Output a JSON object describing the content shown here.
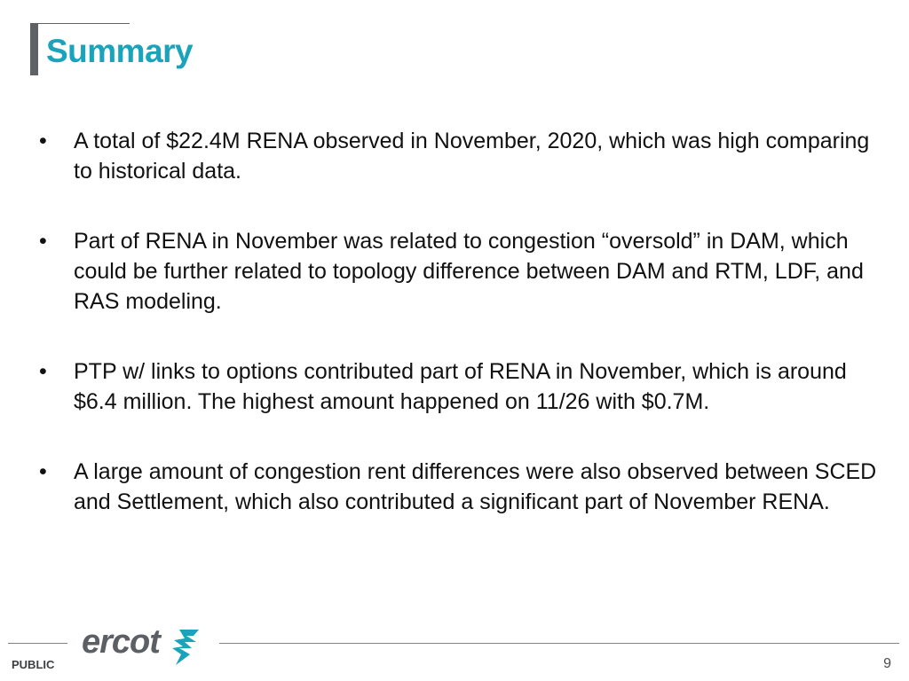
{
  "slide": {
    "title": "Summary",
    "bullets": [
      "A total of $22.4M RENA observed in November, 2020, which was high comparing to historical data.",
      "Part of RENA in November was related to congestion “oversold” in DAM, which could be further related to topology difference between DAM and RTM, LDF, and RAS modeling.",
      "PTP w/ links to options contributed part of RENA in November, which is around $6.4 million. The highest amount happened on 11/26 with $0.7M.",
      "A large amount of congestion rent differences were also observed between SCED and Settlement, which also contributed a significant part of November RENA."
    ],
    "bullet_symbol": "•"
  },
  "footer": {
    "classification": "PUBLIC",
    "page_number": "9",
    "logo_text": "ercot",
    "logo_icon": "ercot-lightning-mark"
  },
  "colors": {
    "title": "#1aa3bb",
    "accent_bar": "#5f6265",
    "logo_text": "#5c6065",
    "logo_mark": "#1aa3bb",
    "body_text": "#111111"
  }
}
